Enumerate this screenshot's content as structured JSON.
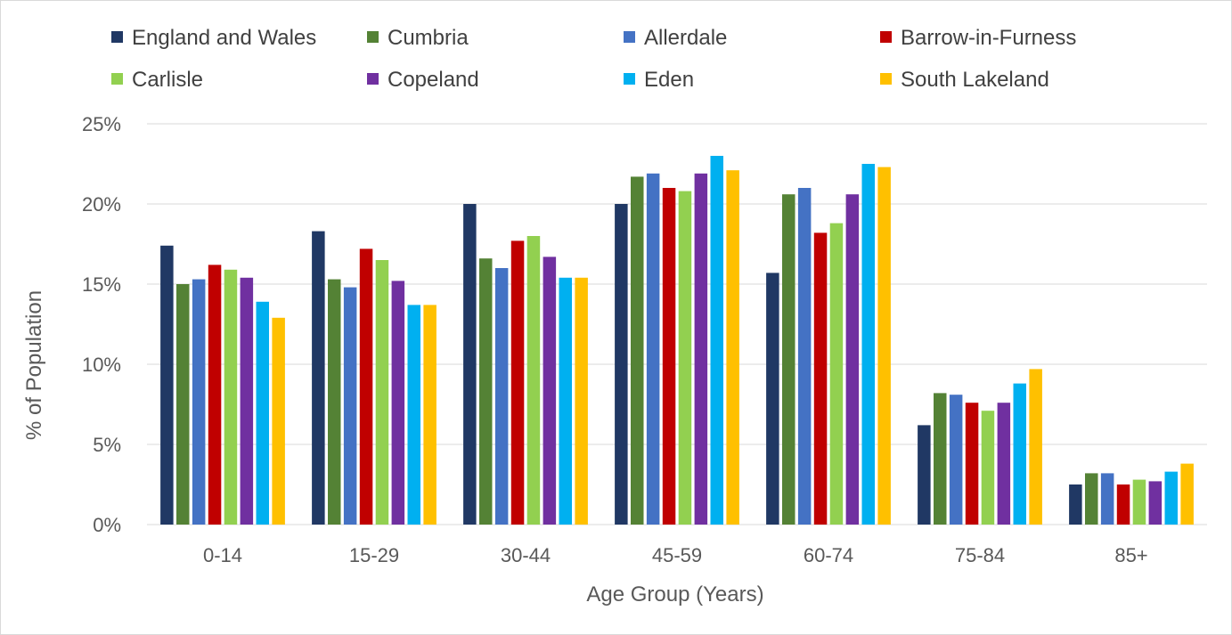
{
  "chart_data": {
    "type": "bar",
    "title": "",
    "xlabel": "Age Group (Years)",
    "ylabel": "% of Population",
    "ylim": [
      0,
      25
    ],
    "y_ticks": [
      "0%",
      "5%",
      "10%",
      "15%",
      "20%",
      "25%"
    ],
    "grid": true,
    "legend_position": "top",
    "categories": [
      "0-14",
      "15-29",
      "30-44",
      "45-59",
      "60-74",
      "75-84",
      "85+"
    ],
    "series": [
      {
        "name": "England and Wales",
        "color": "#203864",
        "values": [
          17.4,
          18.3,
          20.0,
          20.0,
          15.7,
          6.2,
          2.5
        ]
      },
      {
        "name": "Cumbria",
        "color": "#548235",
        "values": [
          15.0,
          15.3,
          16.6,
          21.7,
          20.6,
          8.2,
          3.2
        ]
      },
      {
        "name": "Allerdale",
        "color": "#4472c4",
        "values": [
          15.3,
          14.8,
          16.0,
          21.9,
          21.0,
          8.1,
          3.2
        ]
      },
      {
        "name": "Barrow-in-Furness",
        "color": "#c00000",
        "values": [
          16.2,
          17.2,
          17.7,
          21.0,
          18.2,
          7.6,
          2.5
        ]
      },
      {
        "name": "Carlisle",
        "color": "#92d050",
        "values": [
          15.9,
          16.5,
          18.0,
          20.8,
          18.8,
          7.1,
          2.8
        ]
      },
      {
        "name": "Copeland",
        "color": "#7030a0",
        "values": [
          15.4,
          15.2,
          16.7,
          21.9,
          20.6,
          7.6,
          2.7
        ]
      },
      {
        "name": "Eden",
        "color": "#00b0f0",
        "values": [
          13.9,
          13.7,
          15.4,
          23.0,
          22.5,
          8.8,
          3.3
        ]
      },
      {
        "name": "South Lakeland",
        "color": "#ffc000",
        "values": [
          12.9,
          13.7,
          15.4,
          22.1,
          22.3,
          9.7,
          3.8
        ]
      }
    ]
  }
}
